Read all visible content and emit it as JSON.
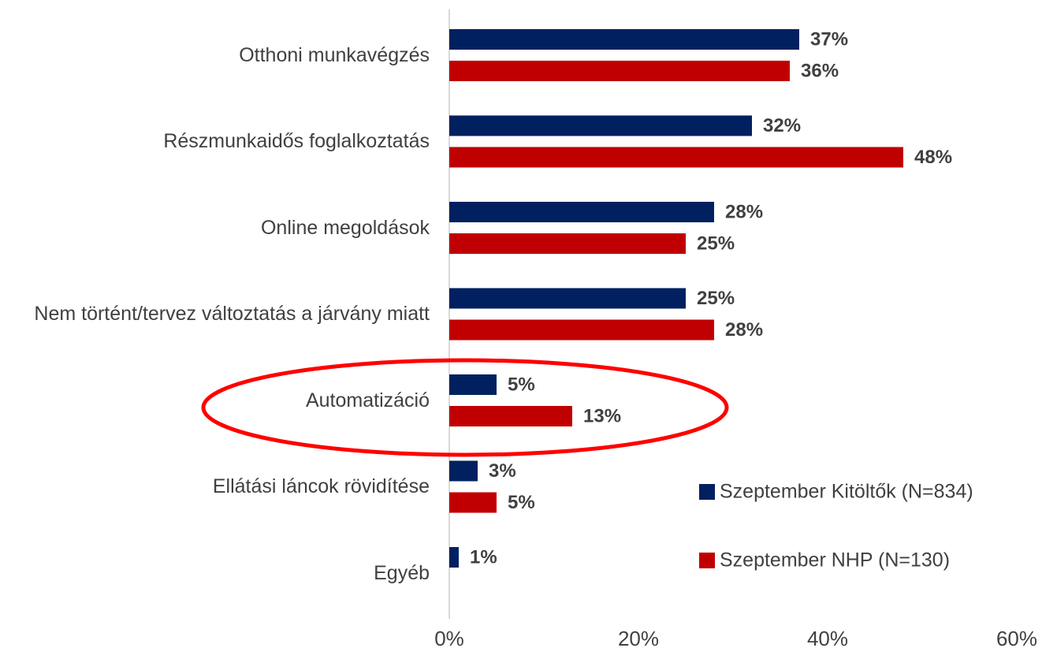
{
  "chart_data": {
    "type": "bar",
    "orientation": "horizontal",
    "categories": [
      "Otthoni munkavégzés",
      "Részmunkaidős foglalkoztatás",
      "Online megoldások",
      "Nem történt/tervez változtatás a járvány miatt",
      "Automatizáció",
      "Ellátási láncok rövidítése",
      "Egyéb"
    ],
    "series": [
      {
        "name": "Szeptember Kitöltők (N=834)",
        "color": "#002060",
        "values": [
          37,
          32,
          28,
          25,
          5,
          3,
          1
        ],
        "value_labels": [
          "37%",
          "32%",
          "28%",
          "25%",
          "5%",
          "3%",
          "1%"
        ]
      },
      {
        "name": "Szeptember NHP (N=130)",
        "color": "#c00000",
        "values": [
          36,
          48,
          25,
          28,
          13,
          5,
          null
        ],
        "value_labels": [
          "36%",
          "48%",
          "25%",
          "28%",
          "13%",
          "5%",
          null
        ]
      }
    ],
    "xlim": [
      0,
      60
    ],
    "xticks": [
      {
        "value": 0,
        "label": "0%"
      },
      {
        "value": 20,
        "label": "20%"
      },
      {
        "value": 40,
        "label": "40%"
      },
      {
        "value": 60,
        "label": "60%"
      }
    ],
    "legend": "right"
  }
}
